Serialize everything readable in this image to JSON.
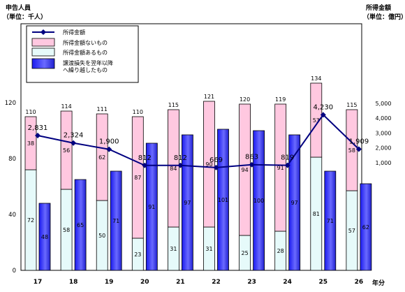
{
  "chart_data": {
    "type": "bar",
    "subtype": "stacked-and-grouped bar with line on secondary axis",
    "left_axis": {
      "title_line1": "申告人員",
      "title_line2": "（単位：千人）",
      "ticks": [
        "0",
        "40",
        "80",
        "120"
      ],
      "ylim": [
        0,
        140
      ]
    },
    "right_axis": {
      "title_line1": "所得金額",
      "title_line2": "（単位：億円）",
      "ticks": [
        "1,000",
        "2,000",
        "3,000",
        "4,000",
        "5,000"
      ],
      "ylim": [
        0,
        6000
      ]
    },
    "x_axis": {
      "label": "年分",
      "categories": [
        "17",
        "18",
        "19",
        "20",
        "21",
        "22",
        "23",
        "24",
        "25",
        "26"
      ]
    },
    "legend": {
      "placement": "top-left",
      "entries": [
        "所得金額",
        "所得金額ないもの",
        "所得金額あるもの",
        "譲渡損失を翌年以降\nへ繰り越したもの"
      ]
    },
    "series": [
      {
        "name": "所得金額あるもの",
        "color": "#e6fafa",
        "values": [
          72,
          58,
          50,
          23,
          31,
          31,
          25,
          28,
          81,
          57
        ]
      },
      {
        "name": "所得金額ないもの",
        "color": "#ffc8e0",
        "values": [
          38,
          56,
          62,
          87,
          84,
          90,
          94,
          91,
          53,
          58
        ]
      },
      {
        "name": "譲渡損失を翌年以降へ繰り越したもの",
        "color": "#2a2aff",
        "values": [
          48,
          65,
          71,
          91,
          97,
          101,
          100,
          97,
          71,
          62
        ]
      },
      {
        "name": "所得金額",
        "color": "#000080",
        "values": [
          2831,
          2324,
          1900,
          812,
          812,
          669,
          863,
          819,
          4230,
          1909
        ]
      }
    ],
    "stack_totals": [
      "110",
      "114",
      "111",
      "110",
      "115",
      "121",
      "120",
      "119",
      "134",
      "115"
    ],
    "income_labels": [
      "2,831",
      "2,324",
      "1,900",
      "812",
      "812",
      "669",
      "863",
      "819",
      "4,230",
      "1,909"
    ]
  }
}
